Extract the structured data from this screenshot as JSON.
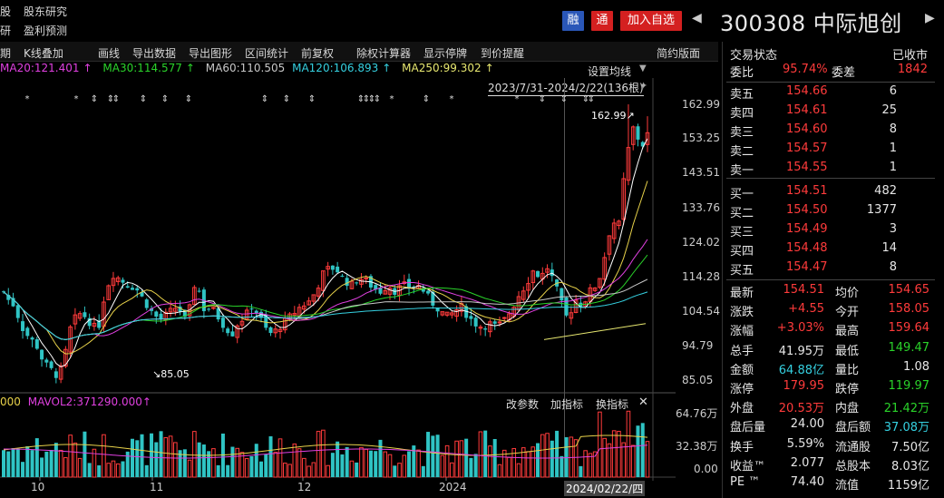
{
  "nav": {
    "item1": "股",
    "item2": "股东研究",
    "item3": "研",
    "item4": "盈利预测"
  },
  "badges": {
    "rong": "融",
    "tong": "通",
    "add_watch": "加入自选"
  },
  "stock": {
    "code": "300308",
    "name": "中际旭创"
  },
  "toolbar": {
    "items": [
      "期",
      "K线叠加",
      "画线",
      "导出数据",
      "导出图形",
      "区间统计",
      "前复权",
      "除权计算器",
      "显示停牌",
      "到价提醒"
    ],
    "simple_layout": "简约版面"
  },
  "ma": {
    "ma20": "MA20:121.401",
    "ma30": "MA30:114.577",
    "ma60": "MA60:110.505",
    "ma120": "MA120:106.893",
    "ma250": "MA250:99.302",
    "arrow": "↑",
    "settings": "设置均线",
    "range": "2023/7/31-2024/2/22(136根)"
  },
  "price_axis": [
    "162.99",
    "153.25",
    "143.51",
    "133.76",
    "124.02",
    "114.28",
    "104.54",
    "94.79",
    "85.05"
  ],
  "annotations": {
    "high": "162.99",
    "low": "85.05"
  },
  "volume": {
    "vol_label": "000",
    "mavol2": "MAVOL2:371290.000",
    "arrow": "↑",
    "change_param": "改参数",
    "add_indicator": "加指标",
    "switch_indicator": "换指标",
    "close": "✕",
    "axis": [
      "64.76万",
      "32.38万",
      "0.00"
    ]
  },
  "x_axis": [
    "10",
    "11",
    "12",
    "2024",
    "2024/02/22/四"
  ],
  "panel": {
    "trade_status_label": "交易状态",
    "trade_status": "已收市",
    "weibi_label": "委比",
    "weibi": "95.74%",
    "weicha_label": "委差",
    "weicha": "1842",
    "asks": [
      {
        "label": "卖五",
        "price": "154.66",
        "vol": "6"
      },
      {
        "label": "卖四",
        "price": "154.61",
        "vol": "25"
      },
      {
        "label": "卖三",
        "price": "154.60",
        "vol": "8"
      },
      {
        "label": "卖二",
        "price": "154.57",
        "vol": "1"
      },
      {
        "label": "卖一",
        "price": "154.55",
        "vol": "1"
      }
    ],
    "bids": [
      {
        "label": "买一",
        "price": "154.51",
        "vol": "482"
      },
      {
        "label": "买二",
        "price": "154.50",
        "vol": "1377"
      },
      {
        "label": "买三",
        "price": "154.49",
        "vol": "3"
      },
      {
        "label": "买四",
        "price": "154.48",
        "vol": "14"
      },
      {
        "label": "买五",
        "price": "154.47",
        "vol": "8"
      }
    ],
    "stats": [
      {
        "l1": "最新",
        "v1": "154.51",
        "c1": "red",
        "l2": "均价",
        "v2": "154.65",
        "c2": "red"
      },
      {
        "l1": "涨跌",
        "v1": "+4.55",
        "c1": "red",
        "l2": "今开",
        "v2": "158.05",
        "c2": "red"
      },
      {
        "l1": "涨幅",
        "v1": "+3.03%",
        "c1": "red",
        "l2": "最高",
        "v2": "159.64",
        "c2": "red"
      },
      {
        "l1": "总手",
        "v1": "41.95万",
        "c1": "white",
        "l2": "最低",
        "v2": "149.47",
        "c2": "green"
      },
      {
        "l1": "金额",
        "v1": "64.88亿",
        "c1": "cyan",
        "l2": "量比",
        "v2": "1.08",
        "c2": "white"
      },
      {
        "l1": "涨停",
        "v1": "179.95",
        "c1": "red",
        "l2": "跌停",
        "v2": "119.97",
        "c2": "green"
      },
      {
        "l1": "外盘",
        "v1": "20.53万",
        "c1": "red",
        "l2": "内盘",
        "v2": "21.42万",
        "c2": "green"
      },
      {
        "l1": "盘后量",
        "v1": "24.00",
        "c1": "white",
        "l2": "盘后额",
        "v2": "37.08万",
        "c2": "cyan"
      },
      {
        "l1": "换手",
        "v1": "5.59%",
        "c1": "white",
        "l2": "流通股",
        "v2": "7.50亿",
        "c2": "white"
      },
      {
        "l1": "收益™",
        "v1": "2.077",
        "c1": "white",
        "l2": "总股本",
        "v2": "8.03亿",
        "c2": "white"
      },
      {
        "l1": "PE ™",
        "v1": "74.40",
        "c1": "white",
        "l2": "流值",
        "v2": "1159亿",
        "c2": "white"
      }
    ]
  },
  "colors": {
    "up": "#ff3b3b",
    "down": "#2fc4c4",
    "ma5": "#ffffff",
    "ma10": "#e8d24a",
    "ma20": "#e040e0",
    "ma30": "#2ad32a",
    "ma60": "#c8c8c8",
    "ma120": "#35d0e0",
    "ma250": "#e8e870"
  }
}
